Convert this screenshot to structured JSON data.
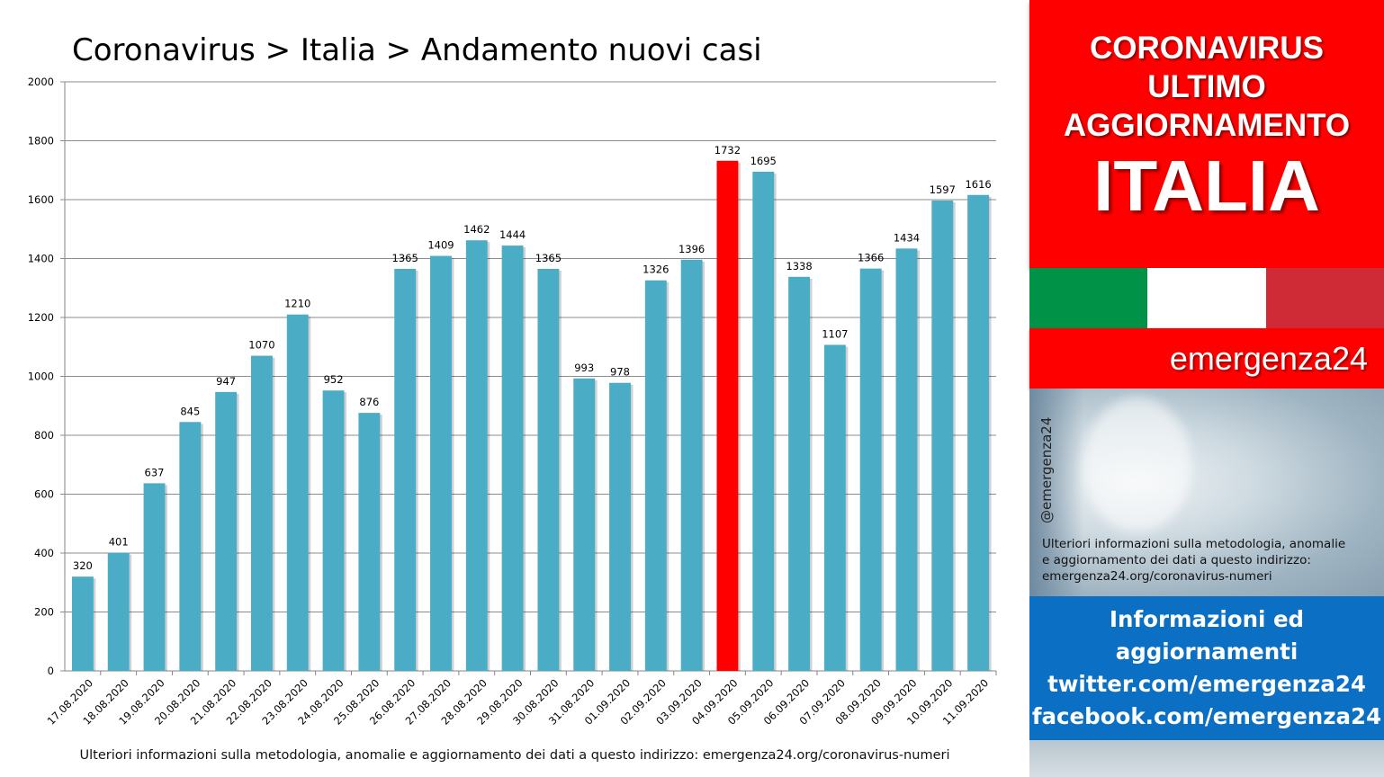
{
  "chart_data": {
    "type": "bar",
    "title": "Coronavirus > Italia > Andamento nuovi casi",
    "xlabel": "",
    "ylabel": "",
    "ylim": [
      0,
      2000
    ],
    "yticks": [
      0,
      200,
      400,
      600,
      800,
      1000,
      1200,
      1400,
      1600,
      1800,
      2000
    ],
    "grid": true,
    "legend": "none",
    "categories": [
      "17.08.2020",
      "18.08.2020",
      "19.08.2020",
      "20.08.2020",
      "21.08.2020",
      "22.08.2020",
      "23.08.2020",
      "24.08.2020",
      "25.08.2020",
      "26.08.2020",
      "27.08.2020",
      "28.08.2020",
      "29.08.2020",
      "30.08.2020",
      "31.08.2020",
      "01.09.2020",
      "02.09.2020",
      "03.09.2020",
      "04.09.2020",
      "05.09.2020",
      "06.09.2020",
      "07.09.2020",
      "08.09.2020",
      "09.09.2020",
      "10.09.2020",
      "11.09.2020"
    ],
    "values": [
      320,
      401,
      637,
      845,
      947,
      1070,
      1210,
      952,
      876,
      1365,
      1409,
      1462,
      1444,
      1365,
      993,
      978,
      1326,
      1396,
      1732,
      1695,
      1338,
      1107,
      1366,
      1434,
      1597,
      1616
    ],
    "highlight_index": 18,
    "colors": {
      "bar": "#4bacc6",
      "highlight": "#ff0000",
      "grid": "#8c8c8c"
    }
  },
  "footnote": "Ulteriori informazioni sulla metodologia, anomalie e aggiornamento dei dati a questo indirizzo: emergenza24.org/coronavirus-numeri",
  "sidebar": {
    "banner_lines": [
      "CORONAVIRUS",
      "ULTIMO",
      "AGGIORNAMENTO"
    ],
    "banner_big": "ITALIA",
    "flag_colors": [
      "#009246",
      "#ffffff",
      "#ce2b37"
    ],
    "brand": "emergenza24",
    "handle": "@emergenza24",
    "note_lines": [
      "Ulteriori informazioni sulla metodologia, anomalie",
      "e aggiornamento dei dati a questo indirizzo:",
      "emergenza24.org/coronavirus-numeri"
    ],
    "info_lines": [
      "Informazioni ed",
      "aggiornamenti",
      "twitter.com/emergenza24",
      "facebook.com/emergenza24"
    ]
  }
}
